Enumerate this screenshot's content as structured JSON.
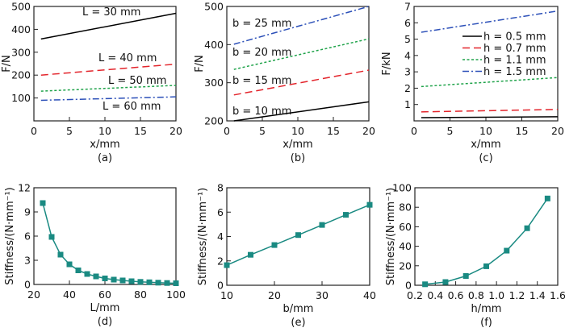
{
  "chart_data": [
    {
      "panel": "(a)",
      "type": "line",
      "xlabel": "x/mm",
      "ylabel": "F/N",
      "xlim": [
        0,
        20
      ],
      "ylim": [
        0,
        500
      ],
      "xticks": [
        0,
        5,
        10,
        15,
        20
      ],
      "yticks": [
        100,
        200,
        300,
        400,
        500
      ],
      "series": [
        {
          "name": "L = 30 mm",
          "x": [
            1,
            20
          ],
          "y": [
            358,
            470
          ],
          "color": "#000000",
          "style": "solid"
        },
        {
          "name": "L = 40 mm",
          "x": [
            1,
            20
          ],
          "y": [
            200,
            248
          ],
          "color": "#e3242b",
          "style": "dashed"
        },
        {
          "name": "L = 50 mm",
          "x": [
            1,
            20
          ],
          "y": [
            130,
            155
          ],
          "color": "#1fa34a",
          "style": "dotted"
        },
        {
          "name": "L = 60 mm",
          "x": [
            1,
            20
          ],
          "y": [
            90,
            105
          ],
          "color": "#2b4fb8",
          "style": "dash-dot"
        }
      ]
    },
    {
      "panel": "(b)",
      "type": "line",
      "xlabel": "x/mm",
      "ylabel": "F/N",
      "xlim": [
        0,
        20
      ],
      "ylim": [
        200,
        500
      ],
      "xticks": [
        0,
        5,
        10,
        15,
        20
      ],
      "yticks": [
        200,
        300,
        400,
        500
      ],
      "series": [
        {
          "name": "b = 10 mm",
          "x": [
            1,
            20
          ],
          "y": [
            200,
            250
          ],
          "color": "#000000",
          "style": "solid"
        },
        {
          "name": "b = 15 mm",
          "x": [
            1,
            20
          ],
          "y": [
            268,
            333
          ],
          "color": "#e3242b",
          "style": "dashed"
        },
        {
          "name": "b = 20 mm",
          "x": [
            1,
            20
          ],
          "y": [
            335,
            415
          ],
          "color": "#1fa34a",
          "style": "dotted"
        },
        {
          "name": "b = 25 mm",
          "x": [
            1,
            20
          ],
          "y": [
            401,
            500
          ],
          "color": "#2b4fb8",
          "style": "dash-dot"
        }
      ]
    },
    {
      "panel": "(c)",
      "type": "line",
      "xlabel": "x/mm",
      "ylabel": "F/kN",
      "xlim": [
        0,
        20
      ],
      "ylim": [
        0,
        7
      ],
      "xticks": [
        0,
        5,
        10,
        15,
        20
      ],
      "yticks": [
        1,
        2,
        3,
        4,
        5,
        6,
        7
      ],
      "legend": "top-right",
      "series": [
        {
          "name": "h = 0.5 mm",
          "x": [
            1,
            20
          ],
          "y": [
            0.2,
            0.25
          ],
          "color": "#000000",
          "style": "solid"
        },
        {
          "name": "h = 0.7 mm",
          "x": [
            1,
            20
          ],
          "y": [
            0.55,
            0.7
          ],
          "color": "#e3242b",
          "style": "dashed"
        },
        {
          "name": "h = 1.1 mm",
          "x": [
            1,
            20
          ],
          "y": [
            2.1,
            2.65
          ],
          "color": "#1fa34a",
          "style": "dotted"
        },
        {
          "name": "h = 1.5 mm",
          "x": [
            1,
            20
          ],
          "y": [
            5.42,
            6.72
          ],
          "color": "#2b4fb8",
          "style": "dash-dot"
        }
      ]
    },
    {
      "panel": "(d)",
      "type": "line",
      "xlabel": "L/mm",
      "ylabel": "Stiffness/(N·mm⁻¹)",
      "xlim": [
        20,
        100
      ],
      "ylim": [
        0,
        12
      ],
      "xticks": [
        20,
        40,
        60,
        80,
        100
      ],
      "yticks": [
        0,
        3,
        6,
        9,
        12
      ],
      "series": [
        {
          "x": [
            25,
            30,
            35,
            40,
            45,
            50,
            55,
            60,
            65,
            70,
            75,
            80,
            85,
            90,
            95,
            100
          ],
          "y": [
            10.1,
            5.9,
            3.7,
            2.5,
            1.75,
            1.3,
            1.0,
            0.75,
            0.6,
            0.5,
            0.4,
            0.32,
            0.27,
            0.22,
            0.18,
            0.15
          ],
          "color": "#1a8a82",
          "marker": "square"
        }
      ]
    },
    {
      "panel": "(e)",
      "type": "line",
      "xlabel": "b/mm",
      "ylabel": "Stiffness/(N·mm⁻¹)",
      "xlim": [
        10,
        40
      ],
      "ylim": [
        0,
        8
      ],
      "xticks": [
        10,
        20,
        30,
        40
      ],
      "yticks": [
        0,
        2,
        4,
        6,
        8
      ],
      "series": [
        {
          "x": [
            10,
            15,
            20,
            25,
            30,
            35,
            40
          ],
          "y": [
            1.65,
            2.5,
            3.3,
            4.12,
            4.95,
            5.78,
            6.6
          ],
          "color": "#1a8a82",
          "marker": "square"
        }
      ]
    },
    {
      "panel": "(f)",
      "type": "line",
      "xlabel": "h/mm",
      "ylabel": "Stiffness/(N·mm⁻¹)",
      "xlim": [
        0.2,
        1.6
      ],
      "ylim": [
        0,
        100
      ],
      "xticks": [
        "0.2",
        "0.4",
        "0.6",
        "0.8",
        "1.0",
        "1.2",
        "1.4",
        "1.6"
      ],
      "yticks": [
        0,
        20,
        40,
        60,
        80,
        100
      ],
      "series": [
        {
          "x": [
            0.3,
            0.5,
            0.7,
            0.9,
            1.1,
            1.3,
            1.5
          ],
          "y": [
            1,
            3.3,
            9.5,
            19.5,
            35.5,
            58.5,
            89
          ],
          "color": "#1a8a82",
          "marker": "square"
        }
      ]
    }
  ]
}
